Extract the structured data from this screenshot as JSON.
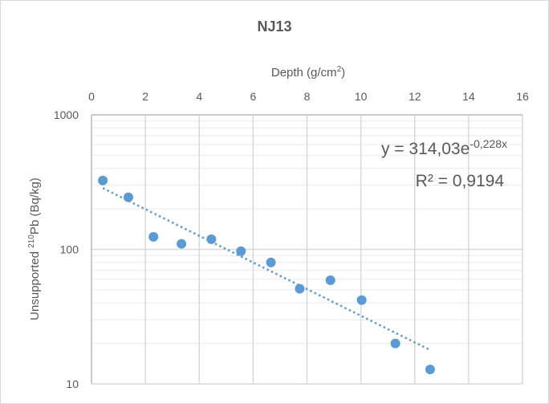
{
  "chart_data": {
    "type": "scatter",
    "title": "NJ13",
    "xlabel": "Depth (g/cm²)",
    "xlabel_parts": {
      "main": "Depth (g/cm",
      "sup": "2",
      "end": ")"
    },
    "ylabel_parts": {
      "pre": "Unsupported ",
      "sup": "210",
      "post": "Pb (Bq/kg)"
    },
    "xlim": [
      0,
      16
    ],
    "ylim": [
      10,
      1000
    ],
    "yscale": "log",
    "x_ticks": [
      "0",
      "2",
      "4",
      "6",
      "8",
      "10",
      "12",
      "14",
      "16"
    ],
    "y_ticks": [
      "1000",
      "100",
      "10"
    ],
    "x_axis_position": "top",
    "grid": true,
    "series": [
      {
        "name": "NJ13",
        "color": "#5b9bd5",
        "x": [
          0.42,
          1.37,
          2.3,
          3.34,
          4.45,
          5.55,
          6.66,
          7.73,
          8.87,
          10.03,
          11.28,
          12.57
        ],
        "y": [
          325,
          244,
          124,
          110,
          119,
          97,
          80,
          51,
          59,
          42,
          20,
          12.8
        ]
      }
    ],
    "trendline": {
      "type": "exponential",
      "a": 314.03,
      "b": -0.228,
      "x_range": [
        0.42,
        12.57
      ],
      "equation_parts": {
        "main": "y = 314,03e",
        "sup": "-0,228x"
      },
      "r2_text": "R² = 0,9194",
      "color": "#5b9bd5"
    }
  }
}
